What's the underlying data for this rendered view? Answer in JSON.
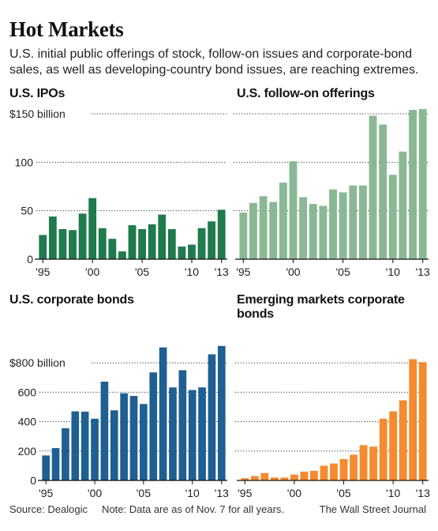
{
  "page": {
    "title": "Hot Markets",
    "subtitle": "U.S. initial public offerings of stock, follow-on issues and corporate-bond sales, as well as developing-country bond issues, are reaching extremes.",
    "source_note": "Source: Dealogic     Note: Data are as of Nov. 7 for all years.",
    "credit": "The Wall Street Journal"
  },
  "chart_data": [
    {
      "type": "bar",
      "title": "U.S. IPOs",
      "color": "#1f7a4d",
      "x": [
        1995,
        1996,
        1997,
        1998,
        1999,
        2000,
        2001,
        2002,
        2003,
        2004,
        2005,
        2006,
        2007,
        2008,
        2009,
        2010,
        2011,
        2012,
        2013
      ],
      "values": [
        25,
        44,
        31,
        30,
        47,
        63,
        32,
        21,
        8,
        35,
        31,
        36,
        46,
        31,
        13,
        15,
        32,
        39,
        51
      ],
      "ylim": [
        0,
        150
      ],
      "y_ticks": [
        0,
        50,
        100,
        150
      ],
      "y_tick_labels": [
        "0",
        "50",
        "100",
        "$150 billion"
      ],
      "x_tick_labels": [
        "'95",
        "'00",
        "'05",
        "'10",
        "'13"
      ]
    },
    {
      "type": "bar",
      "title": "U.S. follow-on offerings",
      "color": "#8ab894",
      "x": [
        1995,
        1996,
        1997,
        1998,
        1999,
        2000,
        2001,
        2002,
        2003,
        2004,
        2005,
        2006,
        2007,
        2008,
        2009,
        2010,
        2011,
        2012,
        2013
      ],
      "values": [
        48,
        58,
        65,
        59,
        79,
        101,
        64,
        57,
        55,
        72,
        69,
        76,
        76,
        148,
        139,
        87,
        111,
        154,
        155
      ],
      "ylim": [
        0,
        150
      ],
      "y_ticks": [
        0,
        50,
        100,
        150
      ],
      "x_tick_labels": [
        "'95",
        "'00",
        "'05",
        "'10",
        "'13"
      ]
    },
    {
      "type": "bar",
      "title": "U.S. corporate bonds",
      "color": "#1f5f91",
      "x": [
        1995,
        1996,
        1997,
        1998,
        1999,
        2000,
        2001,
        2002,
        2003,
        2004,
        2005,
        2006,
        2007,
        2008,
        2009,
        2010,
        2011,
        2012,
        2013
      ],
      "values": [
        170,
        220,
        355,
        470,
        468,
        420,
        672,
        477,
        593,
        575,
        520,
        735,
        905,
        633,
        750,
        615,
        633,
        858,
        915
      ],
      "ylim": [
        0,
        1000
      ],
      "y_ticks": [
        0,
        200,
        400,
        600,
        800
      ],
      "y_tick_labels": [
        "0",
        "200",
        "400",
        "600",
        "$800 billion"
      ],
      "x_tick_labels": [
        "'95",
        "'00",
        "'05",
        "'10",
        "'13"
      ]
    },
    {
      "type": "bar",
      "title": "Emerging markets corporate bonds",
      "color": "#f58a2e",
      "x": [
        1995,
        1996,
        1997,
        1998,
        1999,
        2000,
        2001,
        2002,
        2003,
        2004,
        2005,
        2006,
        2007,
        2008,
        2009,
        2010,
        2011,
        2012,
        2013
      ],
      "values": [
        15,
        30,
        50,
        20,
        20,
        40,
        60,
        65,
        100,
        115,
        145,
        175,
        240,
        230,
        420,
        470,
        545,
        825,
        805
      ],
      "ylim": [
        0,
        1000
      ],
      "y_ticks": [
        0,
        200,
        400,
        600,
        800
      ],
      "x_tick_labels": [
        "'95",
        "'00",
        "'05",
        "'10",
        "'13"
      ]
    }
  ]
}
